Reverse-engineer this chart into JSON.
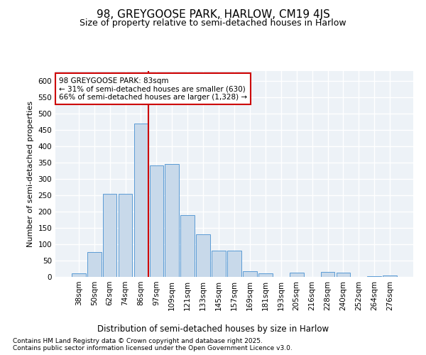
{
  "title1": "98, GREYGOOSE PARK, HARLOW, CM19 4JS",
  "title2": "Size of property relative to semi-detached houses in Harlow",
  "xlabel": "Distribution of semi-detached houses by size in Harlow",
  "ylabel": "Number of semi-detached properties",
  "categories": [
    "38sqm",
    "50sqm",
    "62sqm",
    "74sqm",
    "86sqm",
    "97sqm",
    "109sqm",
    "121sqm",
    "133sqm",
    "145sqm",
    "157sqm",
    "169sqm",
    "181sqm",
    "193sqm",
    "205sqm",
    "216sqm",
    "228sqm",
    "240sqm",
    "252sqm",
    "264sqm",
    "276sqm"
  ],
  "values": [
    10,
    75,
    255,
    255,
    470,
    340,
    345,
    190,
    130,
    80,
    80,
    18,
    10,
    0,
    12,
    0,
    15,
    12,
    0,
    3,
    5
  ],
  "bar_color": "#c8d9ea",
  "bar_edge_color": "#5b9bd5",
  "red_line_color": "#cc0000",
  "red_line_x": 4.5,
  "annotation_text": "98 GREYGOOSE PARK: 83sqm\n← 31% of semi-detached houses are smaller (630)\n66% of semi-detached houses are larger (1,328) →",
  "annotation_box_color": "#ffffff",
  "annotation_border_color": "#cc0000",
  "ylim": [
    0,
    630
  ],
  "yticks": [
    0,
    50,
    100,
    150,
    200,
    250,
    300,
    350,
    400,
    450,
    500,
    550,
    600
  ],
  "footer_text": "Contains HM Land Registry data © Crown copyright and database right 2025.\nContains public sector information licensed under the Open Government Licence v3.0.",
  "background_color": "#edf2f7",
  "grid_color": "#ffffff",
  "title1_fontsize": 11,
  "title2_fontsize": 9,
  "annotation_fontsize": 7.5,
  "ylabel_fontsize": 8,
  "xlabel_fontsize": 8.5,
  "tick_fontsize": 7.5,
  "footer_fontsize": 6.5
}
